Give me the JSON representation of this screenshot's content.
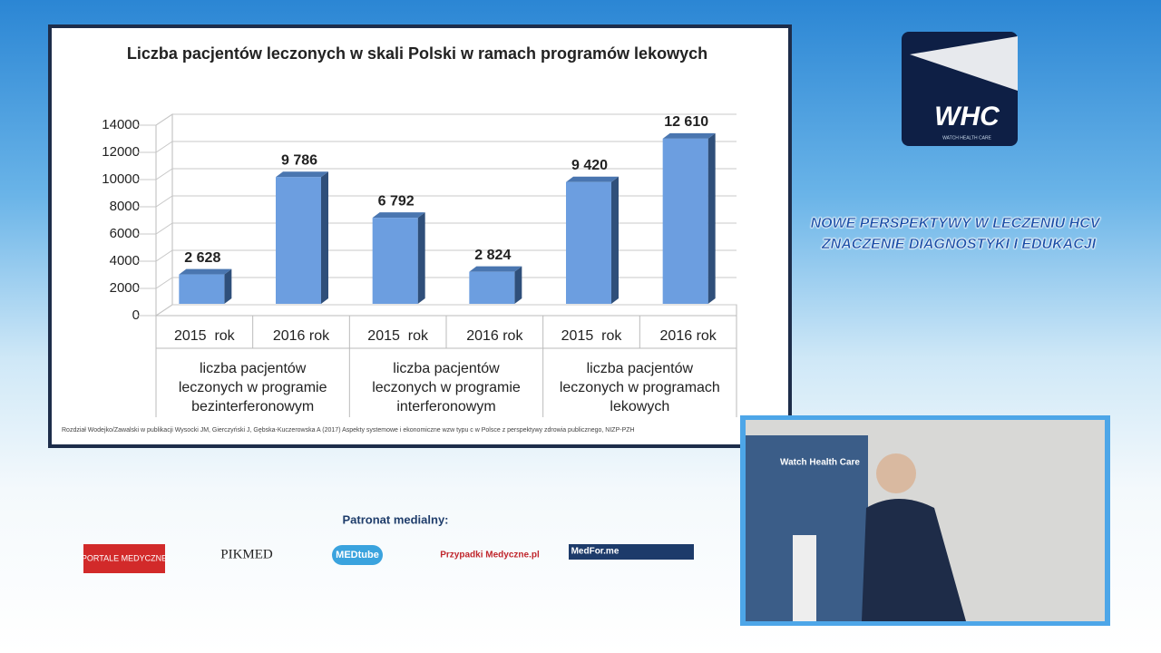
{
  "chart_data": {
    "type": "bar3d",
    "title": "Liczba pacjentów leczonych w skali Polski w ramach programów lekowych",
    "categories": [
      "2015  rok",
      "2016 rok",
      "2015  rok",
      "2016 rok",
      "2015  rok",
      "2016 rok"
    ],
    "groups": [
      "liczba pacjentów leczonych w programie bezinterferonowym",
      "liczba pacjentów leczonych w programie interferonowym",
      "liczba pacjentów leczonych w programach  lekowych"
    ],
    "values": [
      2628,
      9786,
      6792,
      2824,
      9420,
      12610
    ],
    "value_labels": [
      "2 628",
      "9 786",
      "6 792",
      "2 824",
      "9 420",
      "12 610"
    ],
    "color": "#6c9ee0",
    "ylim": [
      0,
      14000
    ],
    "yticks": [
      0,
      2000,
      4000,
      6000,
      8000,
      10000,
      12000,
      14000
    ],
    "grid": true,
    "source": "Rozdział Wodejko/Zawalski w publikacji Wysocki JM, Gierczyński J, Gębska-Kuczerowska A (2017) Aspekty systemowe i ekonomiczne wzw typu c w Polsce  z perspektywy zdrowia publicznego, NIZP-PZH"
  },
  "header": {
    "line1": "NOWE PERSPEKTYWY W LECZENIU HCV",
    "line2": "ZNACZENIE DIAGNOSTYKI I EDUKACJI"
  },
  "logo": {
    "mark": "WHC",
    "caption": "WATCH HEALTH CARE"
  },
  "patrons": {
    "title": "Patronat medialny:",
    "logos": [
      "PORTALE MEDYCZNE",
      "PIKMED",
      "MEDtube",
      "Przypadki Medyczne.pl",
      "MedFor.me"
    ]
  },
  "video": {
    "banner": "Watch Health Care"
  }
}
